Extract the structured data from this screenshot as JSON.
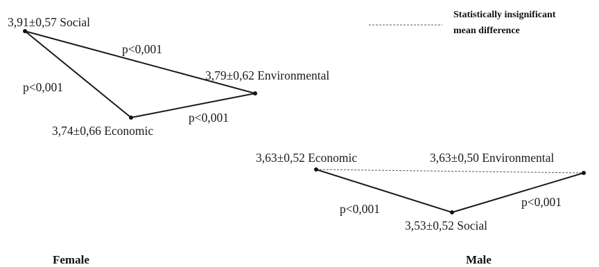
{
  "legend": {
    "line1": "Statistically insignificant",
    "line2": "mean difference"
  },
  "female": {
    "group_label": "Female",
    "nodes": {
      "social": "3,91±0,57 Social",
      "environmental": "3,79±0,62 Environmental",
      "economic": "3,74±0,66 Economic"
    },
    "edges": {
      "social_environmental": "p<0,001",
      "social_economic": "p<0,001",
      "economic_environmental": "p<0,001"
    }
  },
  "male": {
    "group_label": "Male",
    "nodes": {
      "economic": "3,63±0,52 Economic",
      "environmental": "3,63±0,50 Environmental",
      "social": "3,53±0,52 Social"
    },
    "edges": {
      "economic_social": "p<0,001",
      "social_environmental": "p<0,001",
      "economic_environmental_significant": false
    }
  }
}
